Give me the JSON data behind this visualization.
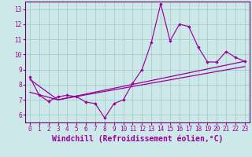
{
  "xlabel": "Windchill (Refroidissement éolien,°C)",
  "background_color": "#cde8e8",
  "line_color": "#990099",
  "spine_color": "#660066",
  "xlim": [
    -0.5,
    23.5
  ],
  "ylim": [
    5.5,
    13.5
  ],
  "xticks": [
    0,
    1,
    2,
    3,
    4,
    5,
    6,
    7,
    8,
    9,
    10,
    11,
    12,
    13,
    14,
    15,
    16,
    17,
    18,
    19,
    20,
    21,
    22,
    23
  ],
  "yticks": [
    6,
    7,
    8,
    9,
    10,
    11,
    12,
    13
  ],
  "series1_x": [
    0,
    1,
    2,
    3,
    4,
    5,
    6,
    7,
    8,
    9,
    10,
    11,
    12,
    13,
    14,
    15,
    16,
    17,
    18,
    19,
    20,
    21,
    22,
    23
  ],
  "series1_y": [
    8.5,
    7.3,
    6.9,
    7.2,
    7.3,
    7.2,
    6.85,
    6.75,
    5.8,
    6.75,
    7.0,
    8.1,
    9.0,
    10.8,
    13.35,
    10.9,
    12.0,
    11.85,
    10.5,
    9.5,
    9.5,
    10.2,
    9.8,
    9.55
  ],
  "trend1_x": [
    0,
    3,
    23
  ],
  "trend1_y": [
    8.35,
    7.0,
    9.55
  ],
  "trend2_x": [
    0,
    3,
    23
  ],
  "trend2_y": [
    7.5,
    7.0,
    9.2
  ],
  "grid_color": "#aacccc",
  "tick_fontsize": 5.5,
  "label_fontsize": 7.0
}
